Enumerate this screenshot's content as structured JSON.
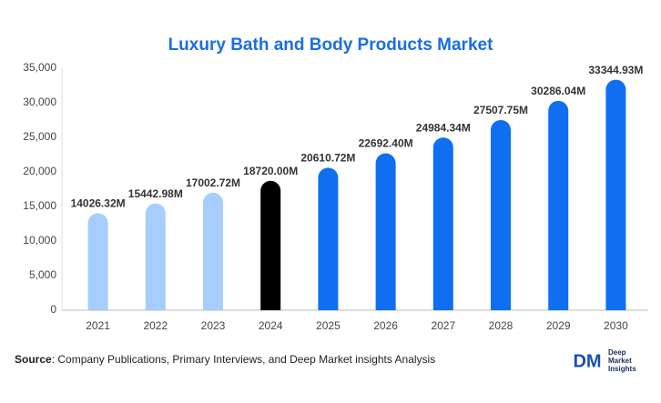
{
  "chart_data": {
    "type": "bar",
    "title": "Luxury Bath and Body Products Market",
    "categories": [
      "2021",
      "2022",
      "2023",
      "2024",
      "2025",
      "2026",
      "2027",
      "2028",
      "2029",
      "2030"
    ],
    "values": [
      14026.32,
      15442.98,
      17002.72,
      18720.0,
      20610.72,
      22692.4,
      24984.34,
      27507.75,
      30286.04,
      33344.93
    ],
    "value_labels": [
      "14026.32M",
      "15442.98M",
      "17002.72M",
      "18720.00M",
      "20610.72M",
      "22692.40M",
      "24984.34M",
      "27507.75M",
      "30286.04M",
      "33344.93M"
    ],
    "colors": [
      "#a6cdfb",
      "#a6cdfb",
      "#a6cdfb",
      "#000000",
      "#0f6ff0",
      "#0f6ff0",
      "#0f6ff0",
      "#0f6ff0",
      "#0f6ff0",
      "#0f6ff0"
    ],
    "ylim": [
      0,
      35000
    ],
    "yticks": [
      0,
      {
        "value": 5000,
        "label": "5,000"
      },
      {
        "value": 10000,
        "label": "10,000"
      },
      {
        "value": 15000,
        "label": "15,000"
      },
      {
        "value": 20000,
        "label": "20,000"
      },
      {
        "value": 25000,
        "label": "25,000"
      },
      {
        "value": 30000,
        "label": "30,000"
      },
      {
        "value": 35000,
        "label": "35,000"
      }
    ],
    "grid": false
  },
  "source": {
    "label": "Source",
    "text": ": Company Publications, Primary Interviews, and Deep Market insights Analysis"
  },
  "logo": {
    "mark": "DM",
    "lines": [
      "Deep",
      "Market",
      "Insights"
    ]
  }
}
